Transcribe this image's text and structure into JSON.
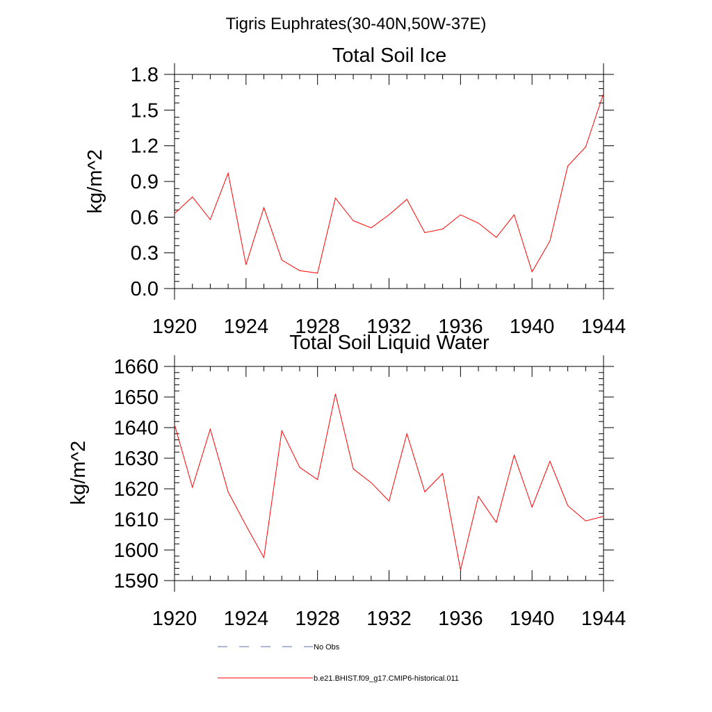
{
  "page_title": "Tigris Euphrates(30-40N,50W-37E)",
  "chart_data": [
    {
      "type": "line",
      "title": "Total Soil Ice",
      "xlabel": "",
      "ylabel": "kg/m^2",
      "xlim": [
        1920,
        1944
      ],
      "ylim": [
        0.0,
        1.8
      ],
      "x_ticks": [
        "1920",
        "1924",
        "1928",
        "1932",
        "1936",
        "1940",
        "1944"
      ],
      "y_ticks": [
        "0.0",
        "0.3",
        "0.6",
        "0.9",
        "1.2",
        "1.5",
        "1.8"
      ],
      "grid": false,
      "x": [
        1920,
        1921,
        1922,
        1923,
        1924,
        1925,
        1926,
        1927,
        1928,
        1929,
        1930,
        1931,
        1932,
        1933,
        1934,
        1935,
        1936,
        1937,
        1938,
        1939,
        1940,
        1941,
        1942,
        1943,
        1944
      ],
      "series": [
        {
          "name": "b.e21.BHIST.f09_g17.CMIP6-historical.011",
          "color": "#ff0000",
          "values": [
            0.63,
            0.77,
            0.58,
            0.97,
            0.2,
            0.68,
            0.24,
            0.15,
            0.13,
            0.76,
            0.57,
            0.51,
            0.62,
            0.75,
            0.47,
            0.5,
            0.62,
            0.55,
            0.43,
            0.62,
            0.14,
            0.4,
            1.03,
            1.19,
            1.64
          ]
        }
      ]
    },
    {
      "type": "line",
      "title": "Total Soil Liquid Water",
      "xlabel": "",
      "ylabel": "kg/m^2",
      "xlim": [
        1920,
        1944
      ],
      "ylim": [
        1590,
        1660
      ],
      "x_ticks": [
        "1920",
        "1924",
        "1928",
        "1932",
        "1936",
        "1940",
        "1944"
      ],
      "y_ticks": [
        "1590",
        "1600",
        "1610",
        "1620",
        "1630",
        "1640",
        "1650",
        "1660"
      ],
      "grid": false,
      "x": [
        1920,
        1921,
        1922,
        1923,
        1924,
        1925,
        1926,
        1927,
        1928,
        1929,
        1930,
        1931,
        1932,
        1933,
        1934,
        1935,
        1936,
        1937,
        1938,
        1939,
        1940,
        1941,
        1942,
        1943,
        1944
      ],
      "series": [
        {
          "name": "b.e21.BHIST.f09_g17.CMIP6-historical.011",
          "color": "#ff0000",
          "values": [
            1641,
            1620.5,
            1639.5,
            1619,
            1608,
            1597.5,
            1639,
            1627,
            1623,
            1651,
            1626.5,
            1622,
            1616,
            1638,
            1619,
            1625,
            1593.5,
            1617.5,
            1609,
            1631,
            1614,
            1629,
            1614.5,
            1609.5,
            1611
          ]
        }
      ]
    }
  ],
  "legend": {
    "placement": "bottom-left",
    "items": [
      {
        "label": "No Obs",
        "style": "dashed",
        "color": "#5a6fa8"
      },
      {
        "label": "b.e21.BHIST.f09_g17.CMIP6-historical.011",
        "style": "solid",
        "color": "#ff0000"
      }
    ]
  }
}
